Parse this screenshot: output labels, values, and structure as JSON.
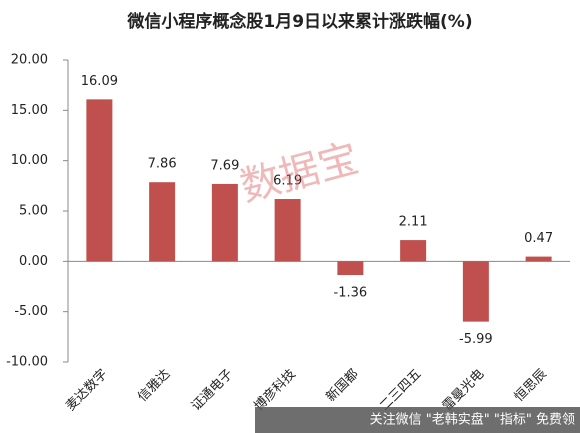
{
  "chart_data": {
    "type": "bar",
    "title": "微信小程序概念股1月9日以来累计涨跌幅(%)",
    "categories": [
      "麦达数字",
      "信雅达",
      "证通电子",
      "博彦科技",
      "新国都",
      "二三四五",
      "雷曼光电",
      "恒思辰"
    ],
    "values": [
      16.09,
      7.86,
      7.69,
      6.19,
      -1.36,
      2.11,
      -5.99,
      0.47
    ],
    "color": "#c0504d",
    "ylim": [
      -10,
      20
    ],
    "yticks": [
      {
        "value": -10,
        "label": "-10.00"
      },
      {
        "value": -5,
        "label": "-5.00"
      },
      {
        "value": 0,
        "label": "0.00"
      },
      {
        "value": 5,
        "label": "5.00"
      },
      {
        "value": 10,
        "label": "10.00"
      },
      {
        "value": 15,
        "label": "15.00"
      },
      {
        "value": 20,
        "label": "20.00"
      }
    ],
    "grid": false
  },
  "watermark": "数据宝",
  "footer": "关注微信 \"老韩实盘\" \"指标\" 免费领"
}
